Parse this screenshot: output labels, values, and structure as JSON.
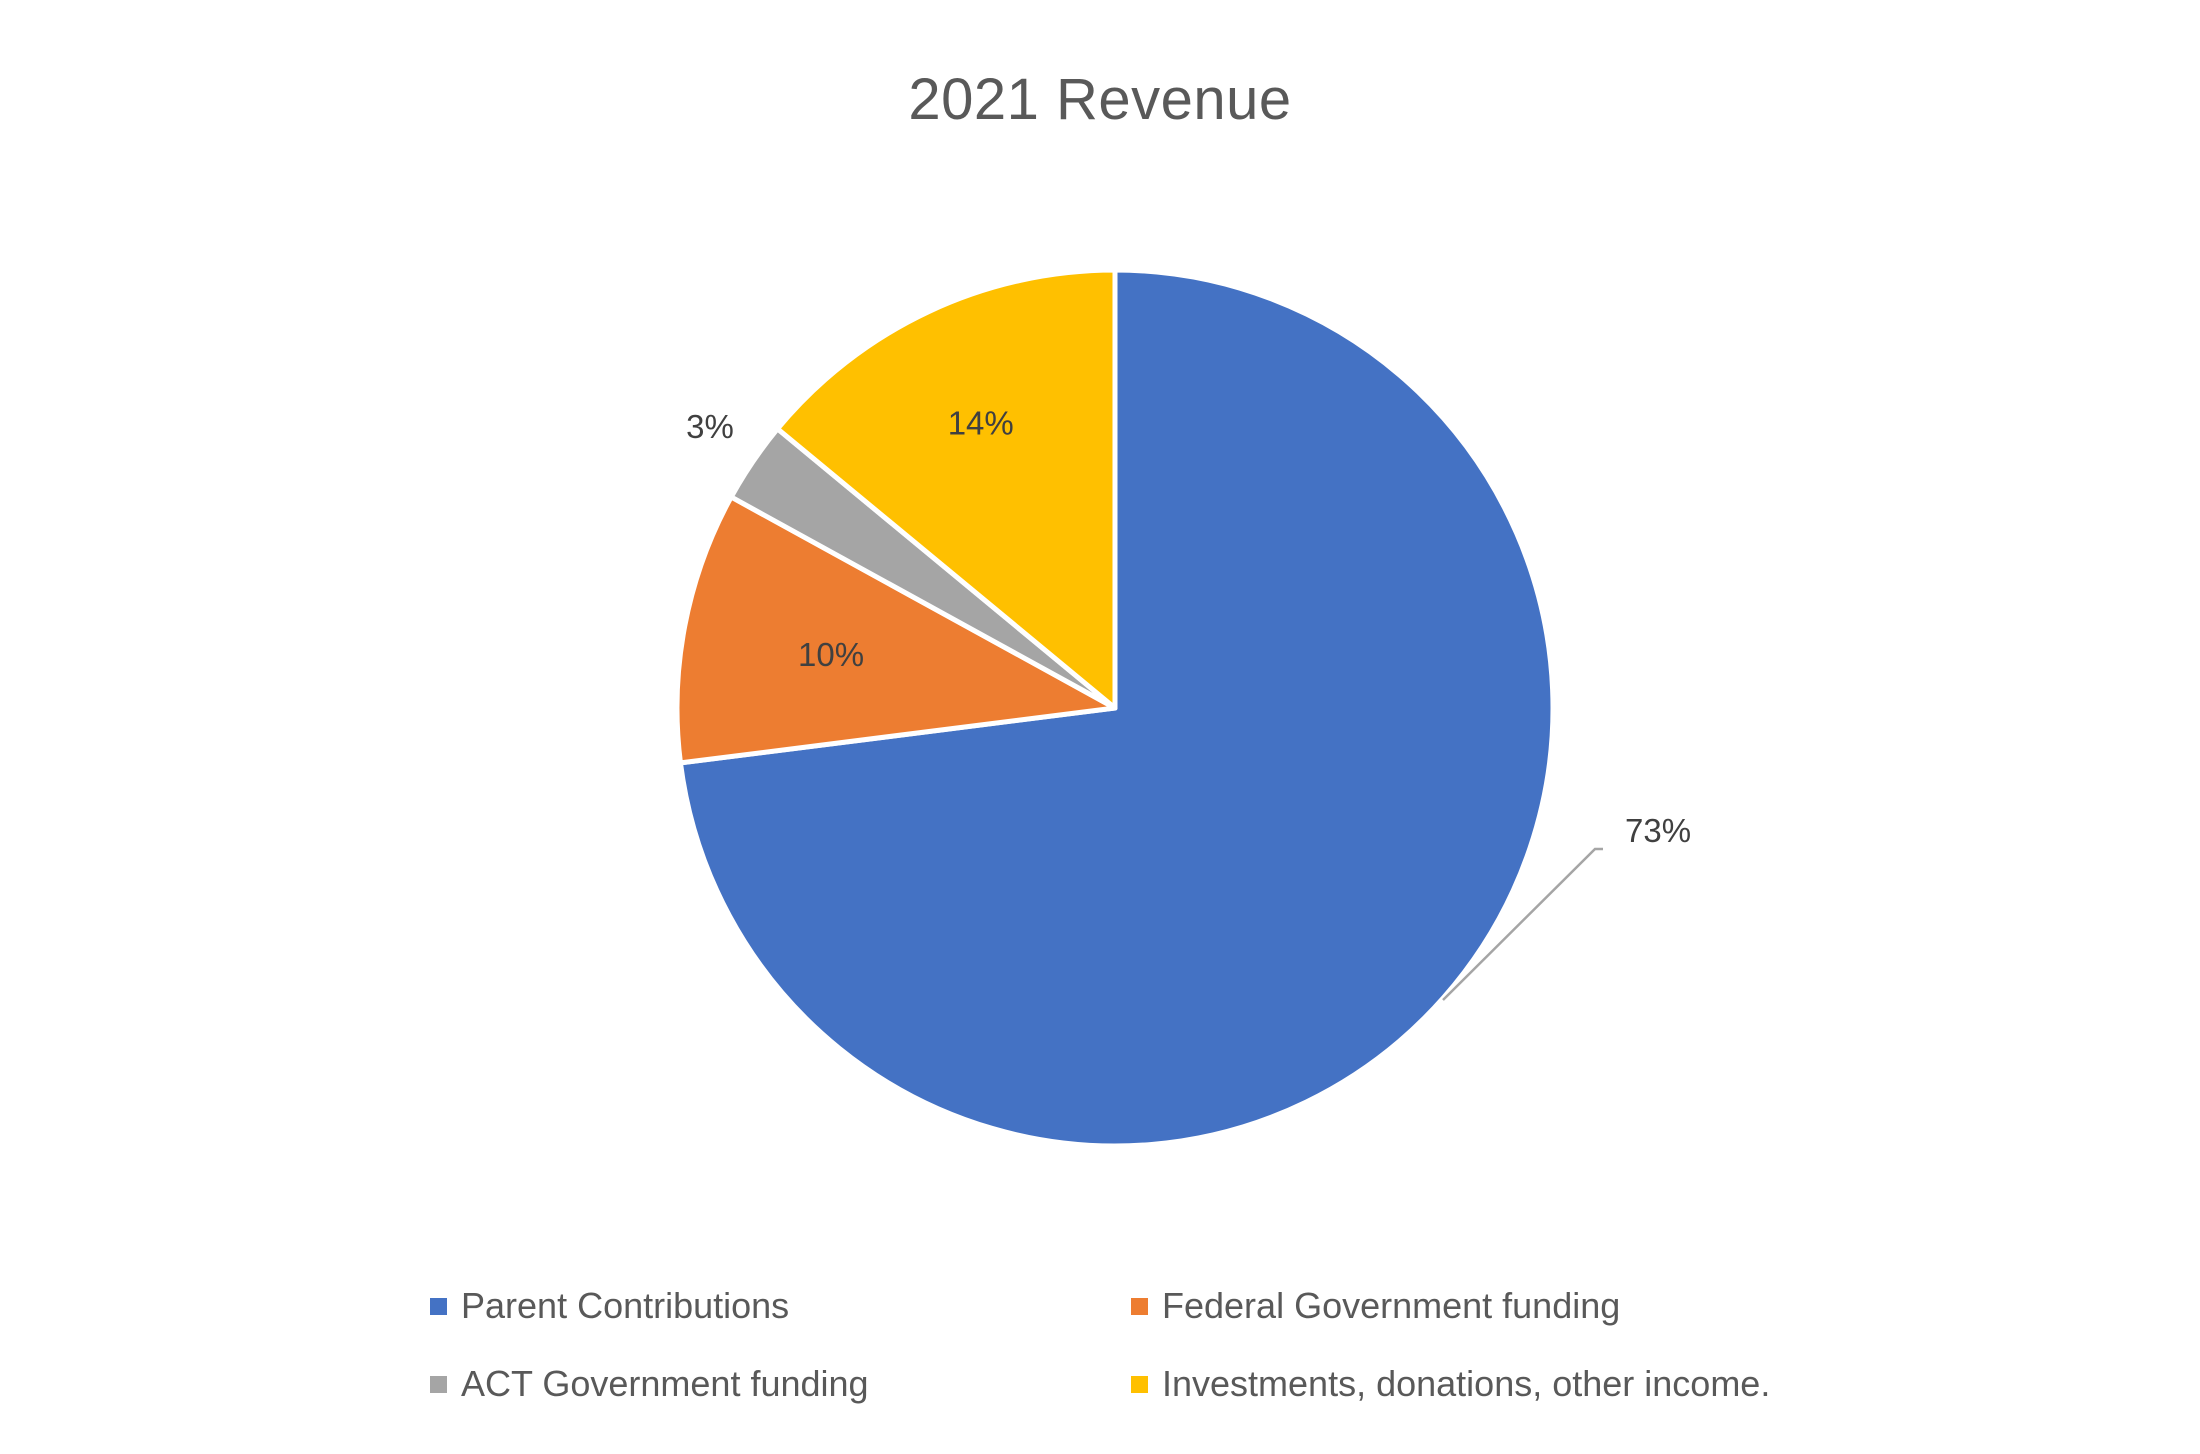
{
  "chart_data": {
    "type": "pie",
    "title": "2021 Revenue",
    "series": [
      {
        "categories": [
          "Parent Contributions",
          "Federal Government funding",
          "ACT Government funding",
          "Investments, donations, other income."
        ],
        "values": [
          73,
          10,
          3,
          14
        ],
        "labels": [
          "73%",
          "10%",
          "3%",
          "14%"
        ],
        "colors": [
          "#4472C4",
          "#ED7D31",
          "#A5A5A5",
          "#FFC000"
        ]
      }
    ],
    "start_angle_deg": 0,
    "direction": "clockwise",
    "legend_position": "bottom",
    "label_color": "#404040",
    "leader_line_color": "#A5A5A5"
  }
}
